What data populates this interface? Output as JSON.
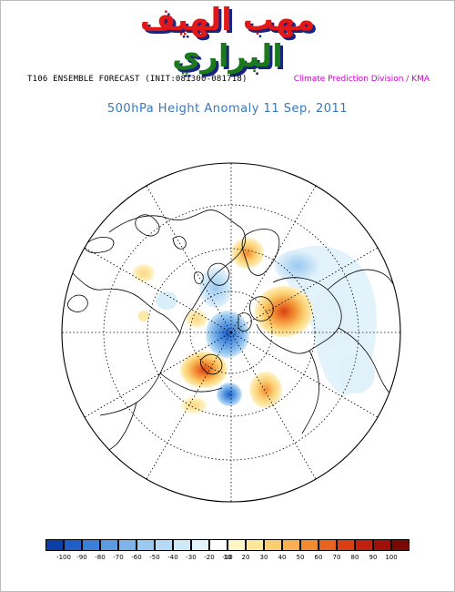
{
  "logo": {
    "line1": "مهب الهيف",
    "line2": "البراري"
  },
  "header": {
    "left": "T106 ENSEMBLE FORECAST (INIT:081300-081718)",
    "right": "Climate Prediction Division / KMA"
  },
  "title": "500hPa Height Anomaly 11 Sep, 2011",
  "colorbar": {
    "colors": [
      "#0a3fa8",
      "#1f5fc8",
      "#3a7fd8",
      "#5c9be2",
      "#7db3ea",
      "#9ac8f0",
      "#b6daf5",
      "#cfe8f8",
      "#e3f3fb",
      "#ffffff",
      "#fff6c8",
      "#fde79a",
      "#fbcf70",
      "#f8b050",
      "#f28a30",
      "#e8641e",
      "#d84014",
      "#c02010",
      "#a01008",
      "#7a0804"
    ],
    "labels": [
      "-100",
      "-90",
      "-80",
      "-70",
      "-60",
      "-50",
      "-40",
      "-30",
      "-20",
      "-10",
      "10",
      "20",
      "30",
      "40",
      "50",
      "60",
      "70",
      "80",
      "90",
      "100"
    ]
  }
}
